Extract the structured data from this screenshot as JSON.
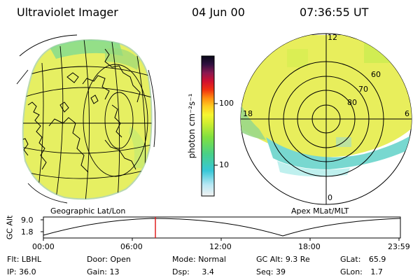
{
  "header": {
    "instrument": "Ultraviolet Imager",
    "date": "04 Jun 00",
    "time": "07:36:55 UT"
  },
  "left_panel": {
    "caption": "Geographic Lat/Lon"
  },
  "right_panel": {
    "caption": "Apex MLat/MLT",
    "mlt_labels": {
      "noon": "12",
      "dawn": "6",
      "midnight": "0",
      "dusk": "18"
    },
    "lat_labels": [
      "80",
      "70",
      "60"
    ]
  },
  "colorbar": {
    "unit_label": "photon cm⁻²s⁻¹",
    "ticks": [
      "100",
      "10"
    ]
  },
  "altitude_plot": {
    "ylabel": "GC Alt",
    "yticks": [
      "9.0",
      "1.8"
    ],
    "xticks": [
      "00:00",
      "06:00",
      "12:00",
      "18:00",
      "23:59"
    ]
  },
  "footer": {
    "row1": [
      {
        "label": "Flt:",
        "value": "LBHL"
      },
      {
        "label": "Door:",
        "value": "Open"
      },
      {
        "label": "Mode:",
        "value": "Normal"
      },
      {
        "label": "GC Alt:",
        "value": "9.3 Re"
      },
      {
        "label": "GLat:",
        "value": "65.9"
      }
    ],
    "row2": [
      {
        "label": "IP:",
        "value": "36.0"
      },
      {
        "label": "Gain:",
        "value": "13"
      },
      {
        "label": "Dsp:",
        "value": "3.4"
      },
      {
        "label": "Seq:",
        "value": "39"
      },
      {
        "label": "GLon:",
        "value": "1.7"
      }
    ]
  }
}
